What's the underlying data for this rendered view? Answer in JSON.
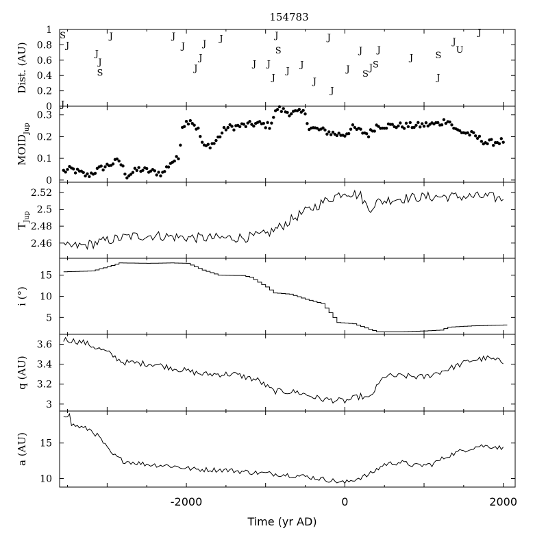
{
  "chart_data": {
    "type": "line",
    "title": "154783",
    "xlabel": "Time (yr AD)",
    "xlim": [
      -3600,
      2150
    ],
    "xticks": [
      -2000,
      0,
      2000
    ],
    "panels": [
      {
        "id": "dist",
        "ylabel": "Dist. (AU)",
        "ylim": [
          0,
          1
        ],
        "yticks": [
          0,
          0.2,
          0.4,
          0.6,
          0.8,
          1
        ],
        "yticklabels": [
          "0",
          "0.2",
          "0.4",
          "0.6",
          "0.8",
          "1"
        ],
        "kind": "letters",
        "points": [
          {
            "x": -3560,
            "y": 0.93,
            "label": "S"
          },
          {
            "x": -3500,
            "y": 0.8,
            "label": "J"
          },
          {
            "x": -3560,
            "y": 0.03,
            "label": "J"
          },
          {
            "x": -3130,
            "y": 0.69,
            "label": "J"
          },
          {
            "x": -3090,
            "y": 0.58,
            "label": "J"
          },
          {
            "x": -3090,
            "y": 0.44,
            "label": "S"
          },
          {
            "x": -2950,
            "y": 0.92,
            "label": "J"
          },
          {
            "x": -2160,
            "y": 0.92,
            "label": "J"
          },
          {
            "x": -2040,
            "y": 0.79,
            "label": "J"
          },
          {
            "x": -1880,
            "y": 0.5,
            "label": "J"
          },
          {
            "x": -1820,
            "y": 0.64,
            "label": "J"
          },
          {
            "x": -1770,
            "y": 0.82,
            "label": "J"
          },
          {
            "x": -1560,
            "y": 0.89,
            "label": "J"
          },
          {
            "x": -1140,
            "y": 0.56,
            "label": "J"
          },
          {
            "x": -960,
            "y": 0.56,
            "label": "J"
          },
          {
            "x": -900,
            "y": 0.38,
            "label": "J"
          },
          {
            "x": -860,
            "y": 0.93,
            "label": "J"
          },
          {
            "x": -840,
            "y": 0.73,
            "label": "S"
          },
          {
            "x": -720,
            "y": 0.47,
            "label": "J"
          },
          {
            "x": -540,
            "y": 0.55,
            "label": "J"
          },
          {
            "x": -380,
            "y": 0.33,
            "label": "J"
          },
          {
            "x": -200,
            "y": 0.9,
            "label": "J"
          },
          {
            "x": -160,
            "y": 0.21,
            "label": "J"
          },
          {
            "x": 40,
            "y": 0.49,
            "label": "J"
          },
          {
            "x": 200,
            "y": 0.73,
            "label": "J"
          },
          {
            "x": 260,
            "y": 0.43,
            "label": "S"
          },
          {
            "x": 330,
            "y": 0.51,
            "label": "J"
          },
          {
            "x": 390,
            "y": 0.55,
            "label": "S"
          },
          {
            "x": 430,
            "y": 0.74,
            "label": "J"
          },
          {
            "x": 840,
            "y": 0.64,
            "label": "J"
          },
          {
            "x": 1180,
            "y": 0.38,
            "label": "J"
          },
          {
            "x": 1180,
            "y": 0.67,
            "label": "S"
          },
          {
            "x": 1380,
            "y": 0.85,
            "label": "J"
          },
          {
            "x": 1450,
            "y": 0.74,
            "label": "U"
          },
          {
            "x": 1700,
            "y": 0.97,
            "label": "J"
          }
        ]
      },
      {
        "id": "moid",
        "ylabel": "MOIDJup",
        "ylim": [
          -0.01,
          0.34
        ],
        "yticks": [
          0,
          0.1,
          0.2,
          0.3
        ],
        "yticklabels": [
          "0",
          "0.1",
          "0.2",
          "0.3"
        ],
        "kind": "dots",
        "anchors": [
          [
            -3550,
            0.04
          ],
          [
            -3450,
            0.05
          ],
          [
            -3250,
            0.02
          ],
          [
            -3100,
            0.05
          ],
          [
            -2850,
            0.09
          ],
          [
            -2750,
            0.02
          ],
          [
            -2600,
            0.05
          ],
          [
            -2450,
            0.04
          ],
          [
            -2300,
            0.03
          ],
          [
            -2200,
            0.08
          ],
          [
            -2100,
            0.1
          ],
          [
            -2050,
            0.25
          ],
          [
            -1950,
            0.28
          ],
          [
            -1850,
            0.23
          ],
          [
            -1780,
            0.15
          ],
          [
            -1650,
            0.17
          ],
          [
            -1500,
            0.24
          ],
          [
            -1300,
            0.25
          ],
          [
            -1100,
            0.26
          ],
          [
            -950,
            0.25
          ],
          [
            -850,
            0.33
          ],
          [
            -700,
            0.31
          ],
          [
            -500,
            0.31
          ],
          [
            -450,
            0.24
          ],
          [
            -300,
            0.23
          ],
          [
            -100,
            0.21
          ],
          [
            0,
            0.21
          ],
          [
            100,
            0.24
          ],
          [
            300,
            0.21
          ],
          [
            400,
            0.25
          ],
          [
            600,
            0.25
          ],
          [
            900,
            0.25
          ],
          [
            1200,
            0.26
          ],
          [
            1300,
            0.28
          ],
          [
            1400,
            0.23
          ],
          [
            1600,
            0.21
          ],
          [
            1800,
            0.17
          ],
          [
            2000,
            0.18
          ]
        ]
      },
      {
        "id": "tjup",
        "ylabel": "TJup",
        "ylim": [
          2.442,
          2.532
        ],
        "yticks": [
          2.46,
          2.48,
          2.5,
          2.52
        ],
        "yticklabels": [
          "2.46",
          "2.48",
          "2.5",
          "2.52"
        ],
        "kind": "noisy-line",
        "noise": 0.006,
        "anchors": [
          [
            -3550,
            2.455
          ],
          [
            -3300,
            2.457
          ],
          [
            -3000,
            2.463
          ],
          [
            -2700,
            2.468
          ],
          [
            -2400,
            2.469
          ],
          [
            -2100,
            2.467
          ],
          [
            -1800,
            2.466
          ],
          [
            -1500,
            2.466
          ],
          [
            -1200,
            2.467
          ],
          [
            -1000,
            2.47
          ],
          [
            -800,
            2.48
          ],
          [
            -600,
            2.492
          ],
          [
            -400,
            2.502
          ],
          [
            -200,
            2.512
          ],
          [
            0,
            2.521
          ],
          [
            200,
            2.516
          ],
          [
            300,
            2.5
          ],
          [
            400,
            2.508
          ],
          [
            600,
            2.512
          ],
          [
            900,
            2.514
          ],
          [
            1200,
            2.515
          ],
          [
            1500,
            2.515
          ],
          [
            1800,
            2.515
          ],
          [
            2000,
            2.512
          ]
        ]
      },
      {
        "id": "inc",
        "ylabel": "i (°)",
        "ylim": [
          1,
          19
        ],
        "yticks": [
          5,
          10,
          15
        ],
        "yticklabels": [
          "5",
          "10",
          "15"
        ],
        "kind": "step-line",
        "anchors": [
          [
            -3550,
            15.8
          ],
          [
            -3200,
            16.0
          ],
          [
            -3000,
            17.0
          ],
          [
            -2850,
            17.9
          ],
          [
            -2500,
            17.8
          ],
          [
            -2200,
            17.9
          ],
          [
            -2000,
            17.8
          ],
          [
            -1800,
            16.2
          ],
          [
            -1600,
            15.0
          ],
          [
            -1300,
            14.9
          ],
          [
            -1200,
            14.5
          ],
          [
            -1000,
            12.2
          ],
          [
            -900,
            10.8
          ],
          [
            -700,
            10.5
          ],
          [
            -500,
            9.3
          ],
          [
            -300,
            8.3
          ],
          [
            -150,
            5.0
          ],
          [
            -100,
            3.8
          ],
          [
            100,
            3.5
          ],
          [
            300,
            2.2
          ],
          [
            400,
            1.6
          ],
          [
            700,
            1.6
          ],
          [
            1000,
            1.8
          ],
          [
            1200,
            2.0
          ],
          [
            1300,
            2.7
          ],
          [
            1600,
            3.0
          ],
          [
            2000,
            3.2
          ]
        ]
      },
      {
        "id": "q",
        "ylabel": "q (AU)",
        "ylim": [
          2.93,
          3.7
        ],
        "yticks": [
          3,
          3.2,
          3.4,
          3.6
        ],
        "yticklabels": [
          "3",
          "3.2",
          "3.4",
          "3.6"
        ],
        "kind": "noisy-line",
        "noise": 0.03,
        "anchors": [
          [
            -3550,
            3.65
          ],
          [
            -3300,
            3.62
          ],
          [
            -3000,
            3.52
          ],
          [
            -2800,
            3.42
          ],
          [
            -2400,
            3.4
          ],
          [
            -2100,
            3.35
          ],
          [
            -1800,
            3.3
          ],
          [
            -1400,
            3.3
          ],
          [
            -1100,
            3.24
          ],
          [
            -900,
            3.13
          ],
          [
            -600,
            3.12
          ],
          [
            -300,
            3.05
          ],
          [
            0,
            3.03
          ],
          [
            200,
            3.08
          ],
          [
            300,
            3.05
          ],
          [
            500,
            3.28
          ],
          [
            800,
            3.28
          ],
          [
            1000,
            3.27
          ],
          [
            1300,
            3.35
          ],
          [
            1600,
            3.44
          ],
          [
            1800,
            3.46
          ],
          [
            2000,
            3.42
          ]
        ]
      },
      {
        "id": "a",
        "ylabel": "a (AU)",
        "ylim": [
          8.8,
          19.5
        ],
        "yticks": [
          10,
          15
        ],
        "yticklabels": [
          "10",
          "15"
        ],
        "kind": "noisy-line",
        "noise": 0.35,
        "anchors": [
          [
            -3550,
            19.0
          ],
          [
            -3470,
            18.9
          ],
          [
            -3450,
            17.6
          ],
          [
            -3200,
            16.8
          ],
          [
            -3100,
            15.8
          ],
          [
            -2950,
            13.5
          ],
          [
            -2800,
            12.5
          ],
          [
            -2500,
            12.0
          ],
          [
            -2200,
            11.8
          ],
          [
            -1900,
            11.3
          ],
          [
            -1500,
            11.2
          ],
          [
            -1100,
            10.8
          ],
          [
            -800,
            10.6
          ],
          [
            -500,
            10.3
          ],
          [
            -200,
            9.8
          ],
          [
            0,
            9.4
          ],
          [
            100,
            9.8
          ],
          [
            300,
            10.5
          ],
          [
            500,
            12.0
          ],
          [
            700,
            12.3
          ],
          [
            900,
            11.8
          ],
          [
            1100,
            12.0
          ],
          [
            1300,
            13.2
          ],
          [
            1500,
            14.0
          ],
          [
            1700,
            14.6
          ],
          [
            1900,
            14.5
          ],
          [
            2000,
            14.2
          ]
        ]
      }
    ]
  }
}
